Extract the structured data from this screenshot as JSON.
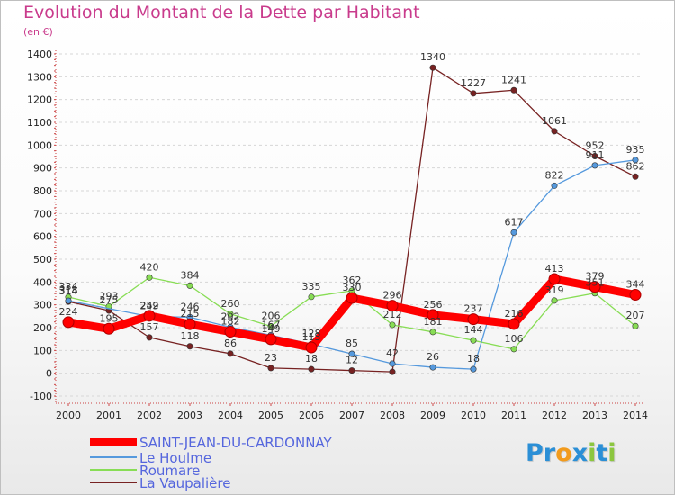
{
  "title": "Evolution du Montant de la Dette par Habitant",
  "subtitle": "(en €)",
  "logo": {
    "letters": [
      {
        "ch": "P",
        "color": "#2b8fd6"
      },
      {
        "ch": "r",
        "color": "#2b8fd6"
      },
      {
        "ch": "o",
        "color": "#f29b1d"
      },
      {
        "ch": "x",
        "color": "#2b8fd6"
      },
      {
        "ch": "i",
        "color": "#8cc63f"
      },
      {
        "ch": "t",
        "color": "#2b8fd6"
      },
      {
        "ch": "i",
        "color": "#8cc63f"
      }
    ]
  },
  "chart_data": {
    "type": "line",
    "title": "Evolution du Montant de la Dette par Habitant",
    "ylabel": "(en €)",
    "xlabel": "",
    "x": [
      2000,
      2001,
      2002,
      2003,
      2004,
      2005,
      2006,
      2007,
      2008,
      2009,
      2010,
      2011,
      2012,
      2013,
      2014
    ],
    "x_tick_labels": [
      "2000",
      "2001",
      "2002",
      "2003",
      "2004",
      "2005",
      "2006",
      "2007",
      "2008",
      "2009",
      "2010",
      "2011",
      "2012",
      "2013",
      "2014"
    ],
    "ylim": [
      -100,
      1400
    ],
    "y_ticks": [
      -100,
      0,
      100,
      200,
      300,
      400,
      500,
      600,
      700,
      800,
      900,
      1000,
      1100,
      1200,
      1300,
      1400
    ],
    "grid": "horizontal dashed",
    "legend_position": "bottom-left",
    "series": [
      {
        "name": "SAINT-JEAN-DU-CARDONNAY",
        "color": "#ff0000",
        "values": [
          224,
          195,
          252,
          215,
          182,
          149,
          113,
          330,
          296,
          256,
          237,
          216,
          413,
          379,
          344
        ],
        "labels": [
          "224",
          "195",
          "252",
          "215",
          "182",
          "149",
          "113",
          "330",
          "296",
          "256",
          "237",
          "216",
          "413",
          "379",
          "344"
        ]
      },
      {
        "name": "Le Houlme",
        "color": "#5599dd",
        "values": [
          318,
          null,
          249,
          246,
          202,
          167,
          128,
          85,
          42,
          26,
          18,
          617,
          822,
          911,
          935
        ],
        "labels": [
          "318",
          "",
          "249",
          "246",
          "202",
          "167",
          "128",
          "85",
          "42",
          "26",
          "18",
          "617",
          "822",
          "911",
          "935"
        ]
      },
      {
        "name": "Roumare",
        "color": "#88dd55",
        "values": [
          334,
          293,
          420,
          384,
          260,
          206,
          335,
          362,
          212,
          181,
          144,
          106,
          319,
          351,
          207
        ],
        "labels": [
          "334",
          "293",
          "420",
          "384",
          "260",
          "206",
          "335",
          "362",
          "212",
          "181",
          "144",
          "106",
          "319",
          "351",
          "207"
        ]
      },
      {
        "name": "La Vaupalière",
        "color": "#772222",
        "values": [
          314,
          275,
          157,
          118,
          86,
          23,
          18,
          12,
          6,
          1340,
          1227,
          1241,
          1061,
          952,
          862
        ],
        "labels": [
          "314",
          "275",
          "157",
          "118",
          "86",
          "23",
          "18",
          "12",
          "",
          "1340",
          "1227",
          "1241",
          "1061",
          "952",
          "862"
        ]
      }
    ]
  }
}
